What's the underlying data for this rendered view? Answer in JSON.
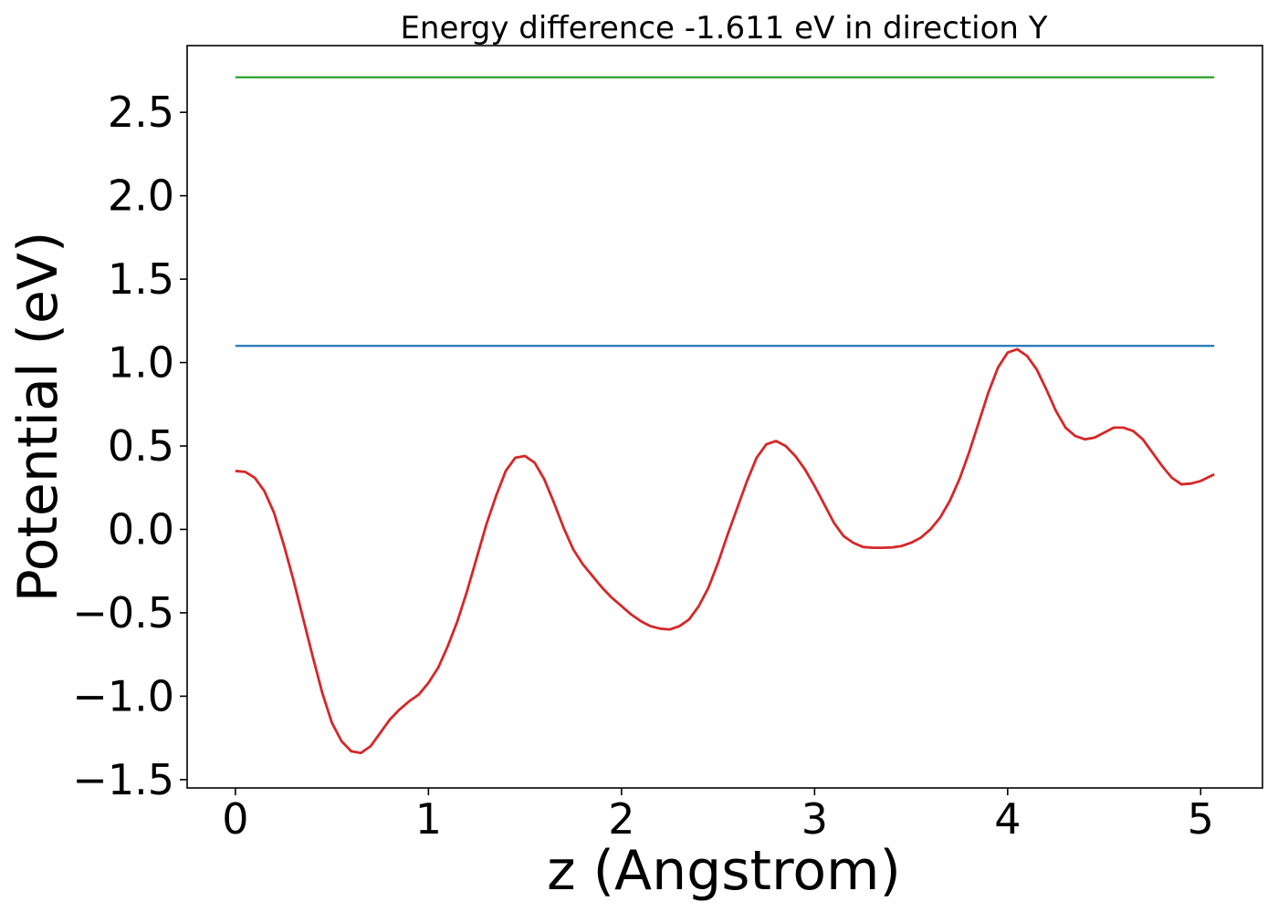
{
  "chart_data": {
    "type": "line",
    "title": "Energy difference -1.611 eV in direction Y",
    "xlabel": "z (Angstrom)",
    "ylabel": "Potential (eV)",
    "xlim": [
      -0.25,
      5.32
    ],
    "ylim": [
      -1.55,
      2.9
    ],
    "xticks": [
      0,
      1,
      2,
      3,
      4,
      5
    ],
    "xtick_labels": [
      "0",
      "1",
      "2",
      "3",
      "4",
      "5"
    ],
    "yticks": [
      -1.5,
      -1.0,
      -0.5,
      0.0,
      0.5,
      1.0,
      1.5,
      2.0,
      2.5
    ],
    "ytick_labels": [
      "−1.5",
      "−1.0",
      "−0.5",
      "0.0",
      "0.5",
      "1.0",
      "1.5",
      "2.0",
      "2.5"
    ],
    "grid": false,
    "series": [
      {
        "color": "#d62728",
        "x": [
          0.0,
          0.05,
          0.1,
          0.15,
          0.2,
          0.25,
          0.3,
          0.35,
          0.4,
          0.45,
          0.5,
          0.55,
          0.6,
          0.65,
          0.7,
          0.75,
          0.8,
          0.85,
          0.9,
          0.95,
          1.0,
          1.05,
          1.1,
          1.15,
          1.2,
          1.25,
          1.3,
          1.35,
          1.4,
          1.45,
          1.5,
          1.55,
          1.6,
          1.65,
          1.7,
          1.75,
          1.8,
          1.85,
          1.9,
          1.95,
          2.0,
          2.05,
          2.1,
          2.15,
          2.2,
          2.25,
          2.3,
          2.35,
          2.4,
          2.45,
          2.5,
          2.55,
          2.6,
          2.65,
          2.7,
          2.75,
          2.8,
          2.85,
          2.9,
          2.95,
          3.0,
          3.05,
          3.1,
          3.15,
          3.2,
          3.25,
          3.3,
          3.35,
          3.4,
          3.45,
          3.5,
          3.55,
          3.6,
          3.65,
          3.7,
          3.75,
          3.8,
          3.85,
          3.9,
          3.95,
          4.0,
          4.05,
          4.1,
          4.15,
          4.2,
          4.25,
          4.3,
          4.35,
          4.4,
          4.45,
          4.5,
          4.55,
          4.6,
          4.65,
          4.7,
          4.75,
          4.8,
          4.85,
          4.9,
          4.95,
          5.0,
          5.07
        ],
        "y": [
          0.35,
          0.345,
          0.31,
          0.23,
          0.1,
          -0.09,
          -0.3,
          -0.53,
          -0.76,
          -0.98,
          -1.16,
          -1.27,
          -1.33,
          -1.34,
          -1.3,
          -1.22,
          -1.14,
          -1.08,
          -1.03,
          -0.99,
          -0.92,
          -0.83,
          -0.7,
          -0.55,
          -0.37,
          -0.17,
          0.03,
          0.2,
          0.35,
          0.43,
          0.44,
          0.4,
          0.3,
          0.16,
          0.01,
          -0.12,
          -0.21,
          -0.28,
          -0.35,
          -0.41,
          -0.46,
          -0.51,
          -0.55,
          -0.58,
          -0.595,
          -0.6,
          -0.58,
          -0.54,
          -0.46,
          -0.35,
          -0.2,
          -0.03,
          0.13,
          0.29,
          0.43,
          0.51,
          0.53,
          0.5,
          0.44,
          0.36,
          0.26,
          0.15,
          0.04,
          -0.04,
          -0.08,
          -0.105,
          -0.11,
          -0.11,
          -0.108,
          -0.1,
          -0.08,
          -0.05,
          0.0,
          0.07,
          0.17,
          0.3,
          0.46,
          0.64,
          0.82,
          0.97,
          1.06,
          1.08,
          1.04,
          0.96,
          0.84,
          0.71,
          0.61,
          0.56,
          0.54,
          0.55,
          0.58,
          0.61,
          0.61,
          0.59,
          0.54,
          0.46,
          0.38,
          0.31,
          0.27,
          0.275,
          0.29,
          0.33
        ]
      },
      {
        "color": "#1f77b4",
        "x": [
          0.0,
          5.07
        ],
        "y": [
          1.1,
          1.1
        ]
      },
      {
        "color": "#2ca02c",
        "x": [
          0.0,
          5.07
        ],
        "y": [
          2.71,
          2.71
        ]
      }
    ]
  }
}
